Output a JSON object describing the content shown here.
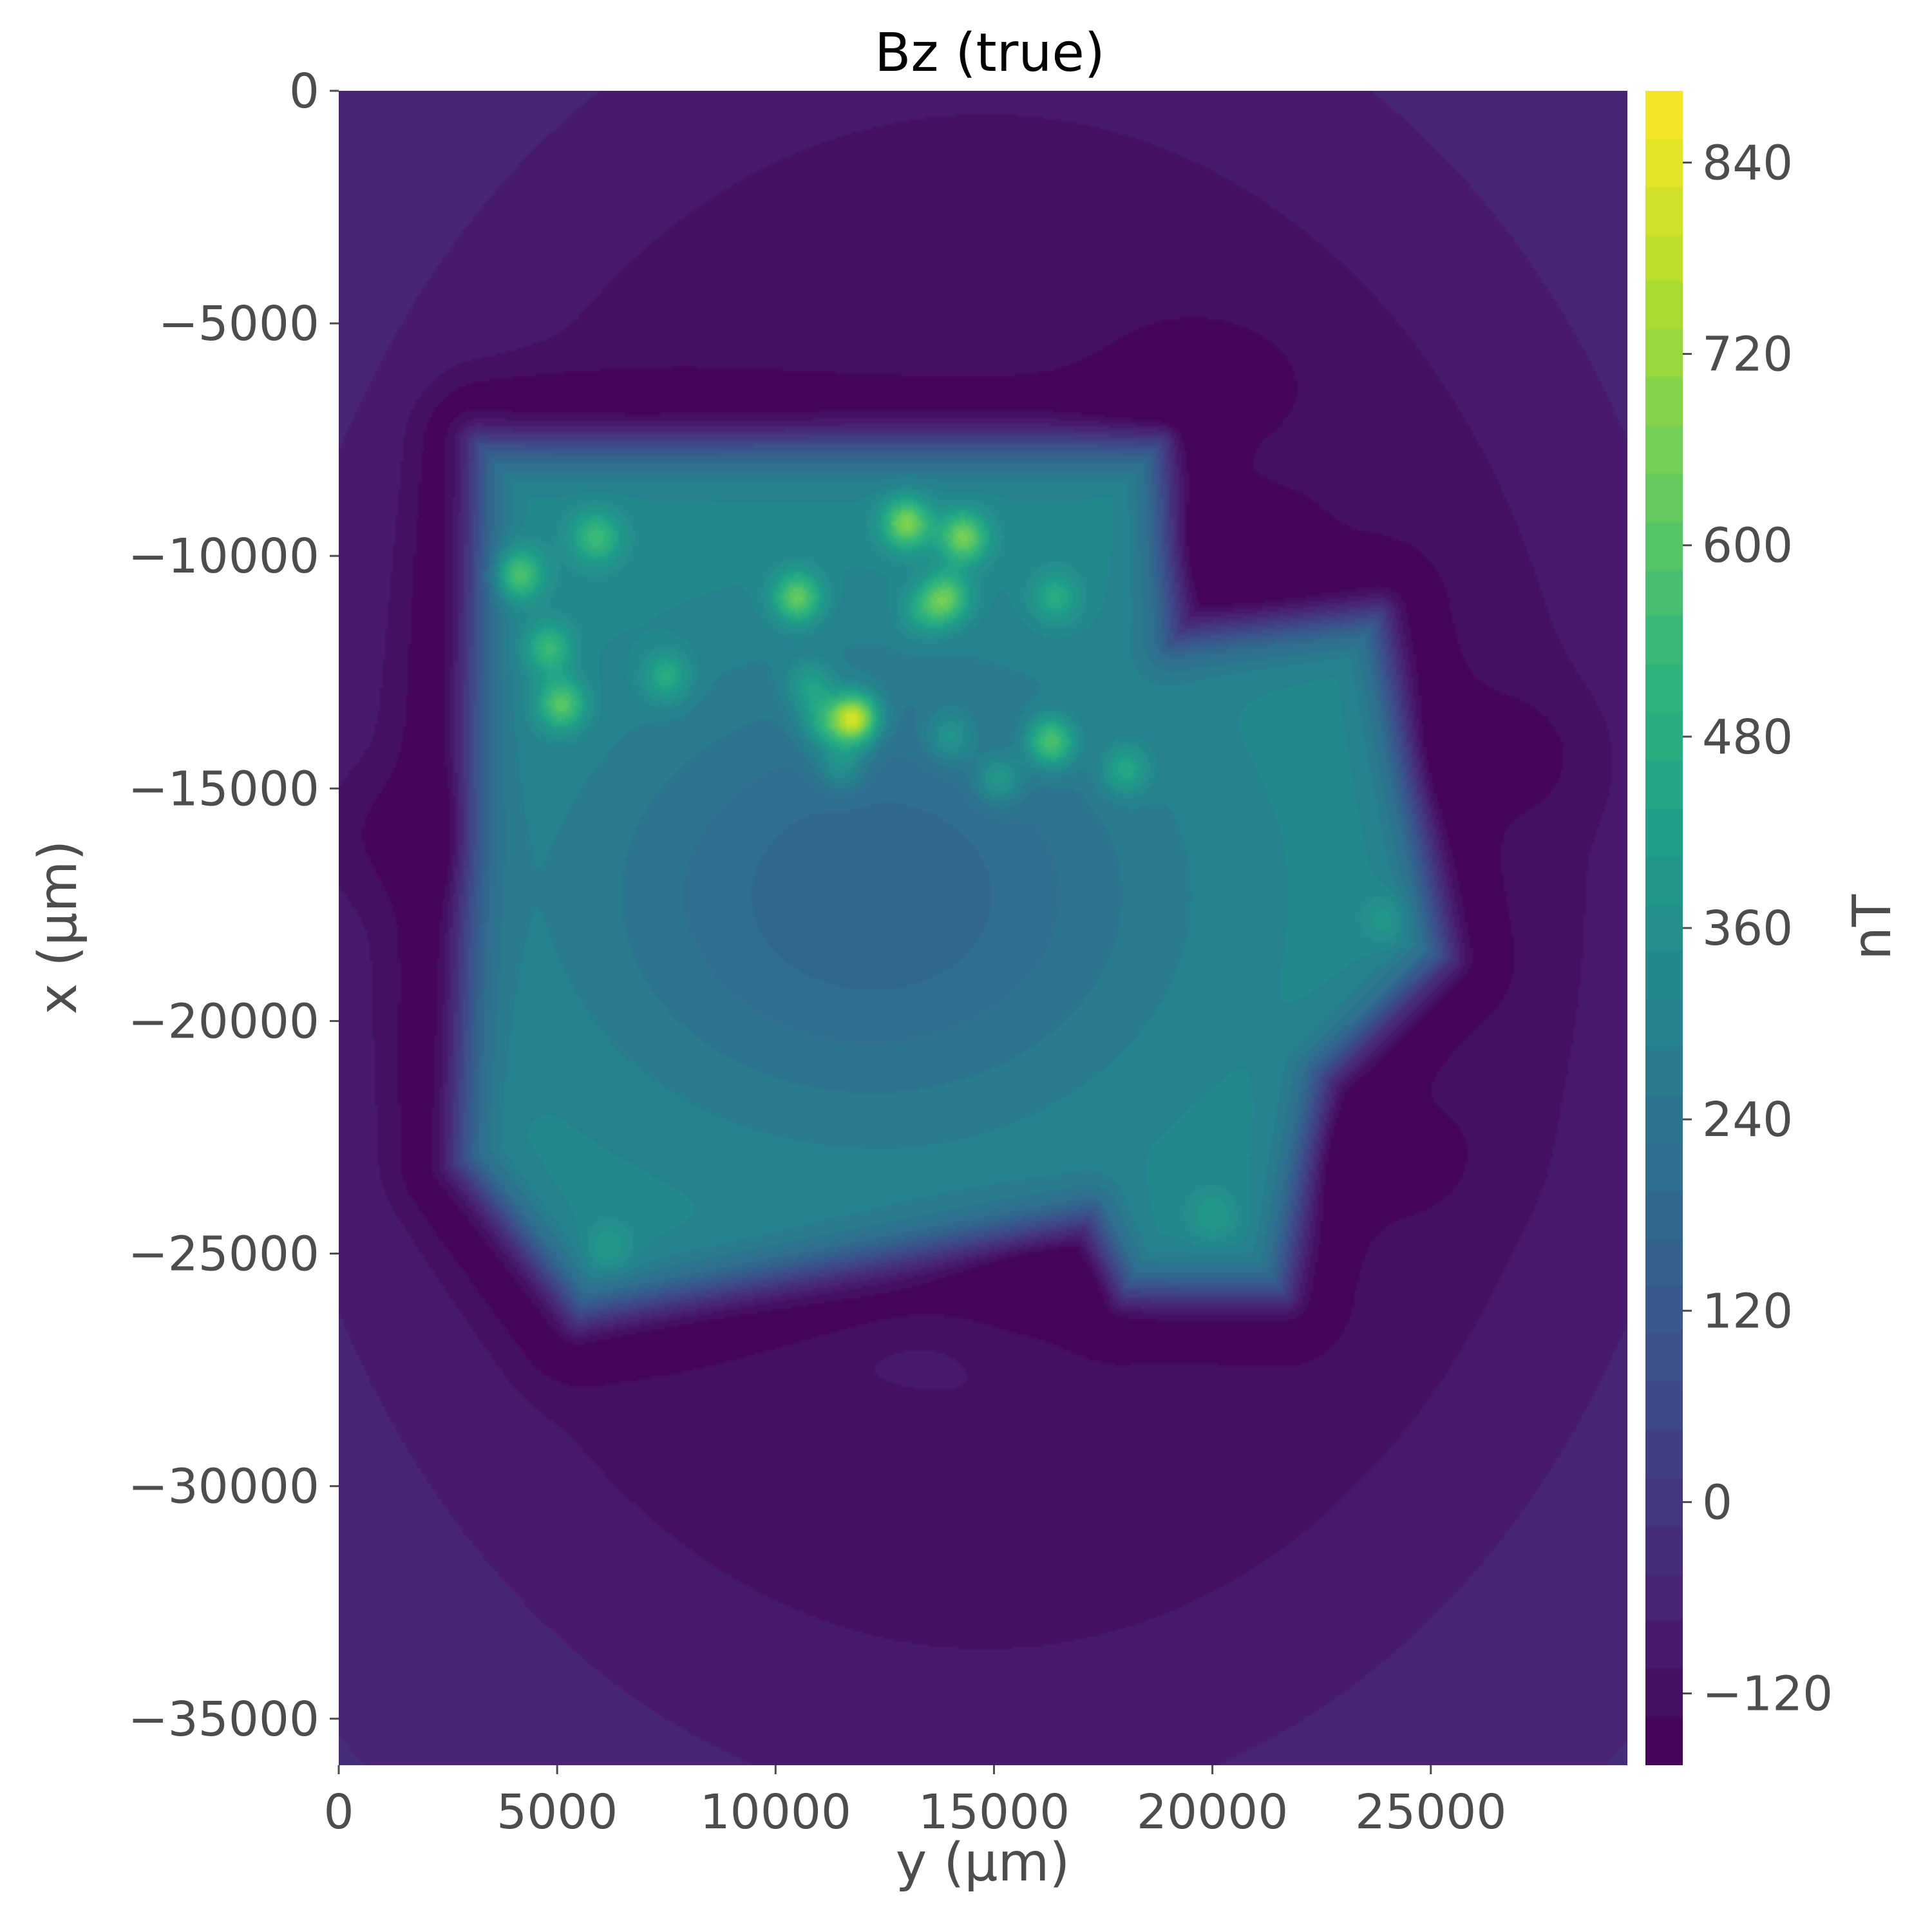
{
  "chart_data": {
    "type": "heatmap",
    "title": "Bz (true)",
    "xlabel": "y (μm)",
    "ylabel": "x (μm)",
    "colorbar_label": "nT",
    "colormap": "viridis",
    "xlim": [
      0,
      29500
    ],
    "ylim": [
      -36000,
      0
    ],
    "xticks": [
      0,
      5000,
      10000,
      15000,
      20000,
      25000
    ],
    "xtick_labels": [
      "0",
      "5000",
      "10000",
      "15000",
      "20000",
      "25000"
    ],
    "yticks": [
      0,
      -5000,
      -10000,
      -15000,
      -20000,
      -25000,
      -30000,
      -35000
    ],
    "ytick_labels": [
      "0",
      "−5000",
      "−10000",
      "−15000",
      "−20000",
      "−25000",
      "−30000",
      "−35000"
    ],
    "colorbar_range": [
      -165,
      885
    ],
    "colorbar_levels_step": 30,
    "colorbar_ticks": [
      -120,
      0,
      120,
      240,
      360,
      480,
      600,
      720,
      840
    ],
    "colorbar_tick_labels": [
      "−120",
      "0",
      "120",
      "240",
      "360",
      "480",
      "600",
      "720",
      "840"
    ],
    "field": {
      "background": -40,
      "negative_ring_center": [
        14800,
        -17000
      ],
      "sample_polygon": [
        [
          3200,
          -7600
        ],
        [
          18800,
          -7600
        ],
        [
          19100,
          -11800
        ],
        [
          23800,
          -11300
        ],
        [
          25300,
          -18600
        ],
        [
          22500,
          -21200
        ],
        [
          21600,
          -25800
        ],
        [
          18000,
          -25800
        ],
        [
          17200,
          -24200
        ],
        [
          5500,
          -26300
        ],
        [
          2800,
          -23000
        ]
      ],
      "sample_level": 340,
      "central_depression": {
        "center": [
          12200,
          -17300
        ],
        "level": 170
      },
      "hotspots": [
        {
          "y": 4100,
          "x": -10400,
          "value": 640
        },
        {
          "y": 4800,
          "x": -12000,
          "value": 560
        },
        {
          "y": 5100,
          "x": -13200,
          "value": 640
        },
        {
          "y": 5900,
          "x": -9600,
          "value": 560
        },
        {
          "y": 7500,
          "x": -12600,
          "value": 520
        },
        {
          "y": 10500,
          "x": -10900,
          "value": 660
        },
        {
          "y": 10800,
          "x": -12800,
          "value": 500
        },
        {
          "y": 11100,
          "x": -13600,
          "value": 520
        },
        {
          "y": 11500,
          "x": -14500,
          "value": 480
        },
        {
          "y": 11800,
          "x": -13500,
          "value": 880
        },
        {
          "y": 13000,
          "x": -9300,
          "value": 700
        },
        {
          "y": 13400,
          "x": -11200,
          "value": 480
        },
        {
          "y": 13900,
          "x": -10900,
          "value": 640
        },
        {
          "y": 14300,
          "x": -9600,
          "value": 680
        },
        {
          "y": 14000,
          "x": -13900,
          "value": 480
        },
        {
          "y": 15100,
          "x": -14800,
          "value": 500
        },
        {
          "y": 16300,
          "x": -14000,
          "value": 660
        },
        {
          "y": 16400,
          "x": -10900,
          "value": 500
        },
        {
          "y": 18000,
          "x": -14600,
          "value": 520
        },
        {
          "y": 24000,
          "x": -17800,
          "value": 420
        },
        {
          "y": 20000,
          "x": -24200,
          "value": 420
        },
        {
          "y": 6200,
          "x": -24900,
          "value": 430
        }
      ],
      "negative_lobes": [
        {
          "y": 19500,
          "x": -6400,
          "value": -150
        },
        {
          "y": 20500,
          "x": -9800,
          "value": -165
        },
        {
          "y": 16300,
          "x": -25700,
          "value": -150
        },
        {
          "y": 2200,
          "x": -16000,
          "value": -120
        },
        {
          "y": 23600,
          "x": -22900,
          "value": -125
        },
        {
          "y": 26100,
          "x": -14300,
          "value": -125
        }
      ]
    }
  }
}
